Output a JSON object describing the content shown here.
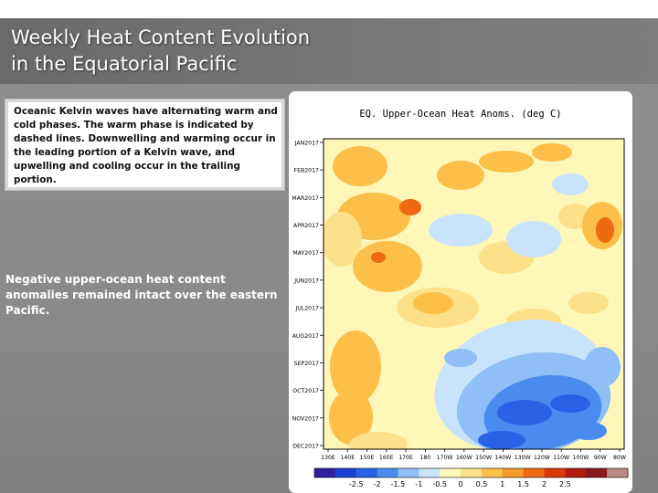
{
  "slide": {
    "title_line1": "Weekly Heat Content Evolution",
    "title_line2": "in the Equatorial Pacific",
    "callout_text": "Oceanic Kelvin waves have alternating warm and cold phases. The warm phase is indicated by dashed lines. Downwelling and warming occur in the leading portion of a Kelvin wave, and upwelling and cooling occur in the trailing portion.",
    "note_text": "Negative upper-ocean heat content anomalies remained intact over the eastern Pacific."
  },
  "chart_data": {
    "type": "heatmap",
    "title": "EQ. Upper-Ocean Heat Anoms. (deg C)",
    "y_labels": [
      "JAN2017",
      "FEB2017",
      "MAR2017",
      "APR2017",
      "MAY2017",
      "JUN2017",
      "JUL2017",
      "AUG2017",
      "SEP2017",
      "OCT2017",
      "NOV2017",
      "DEC2017"
    ],
    "x_labels": [
      "130E",
      "140E",
      "150E",
      "160E",
      "170E",
      "180",
      "170W",
      "160W",
      "150W",
      "140W",
      "130W",
      "120W",
      "110W",
      "100W",
      "90W",
      "80W"
    ],
    "colorbar_labels": [
      "-2.5",
      "-2",
      "-1.5",
      "-1",
      "-0.5",
      "0",
      "0.5",
      "1",
      "1.5",
      "2",
      "2.5"
    ],
    "colorbar_colors": [
      "#2f1f9f",
      "#1b3fd0",
      "#2a62e6",
      "#4a8bef",
      "#8fbff6",
      "#c8e4fb",
      "#fff7b8",
      "#fde08a",
      "#fbbf4a",
      "#f79a2a",
      "#ee6a12",
      "#d83a0a",
      "#b01b0b",
      "#8a1a1a",
      "#b98a86"
    ]
  }
}
